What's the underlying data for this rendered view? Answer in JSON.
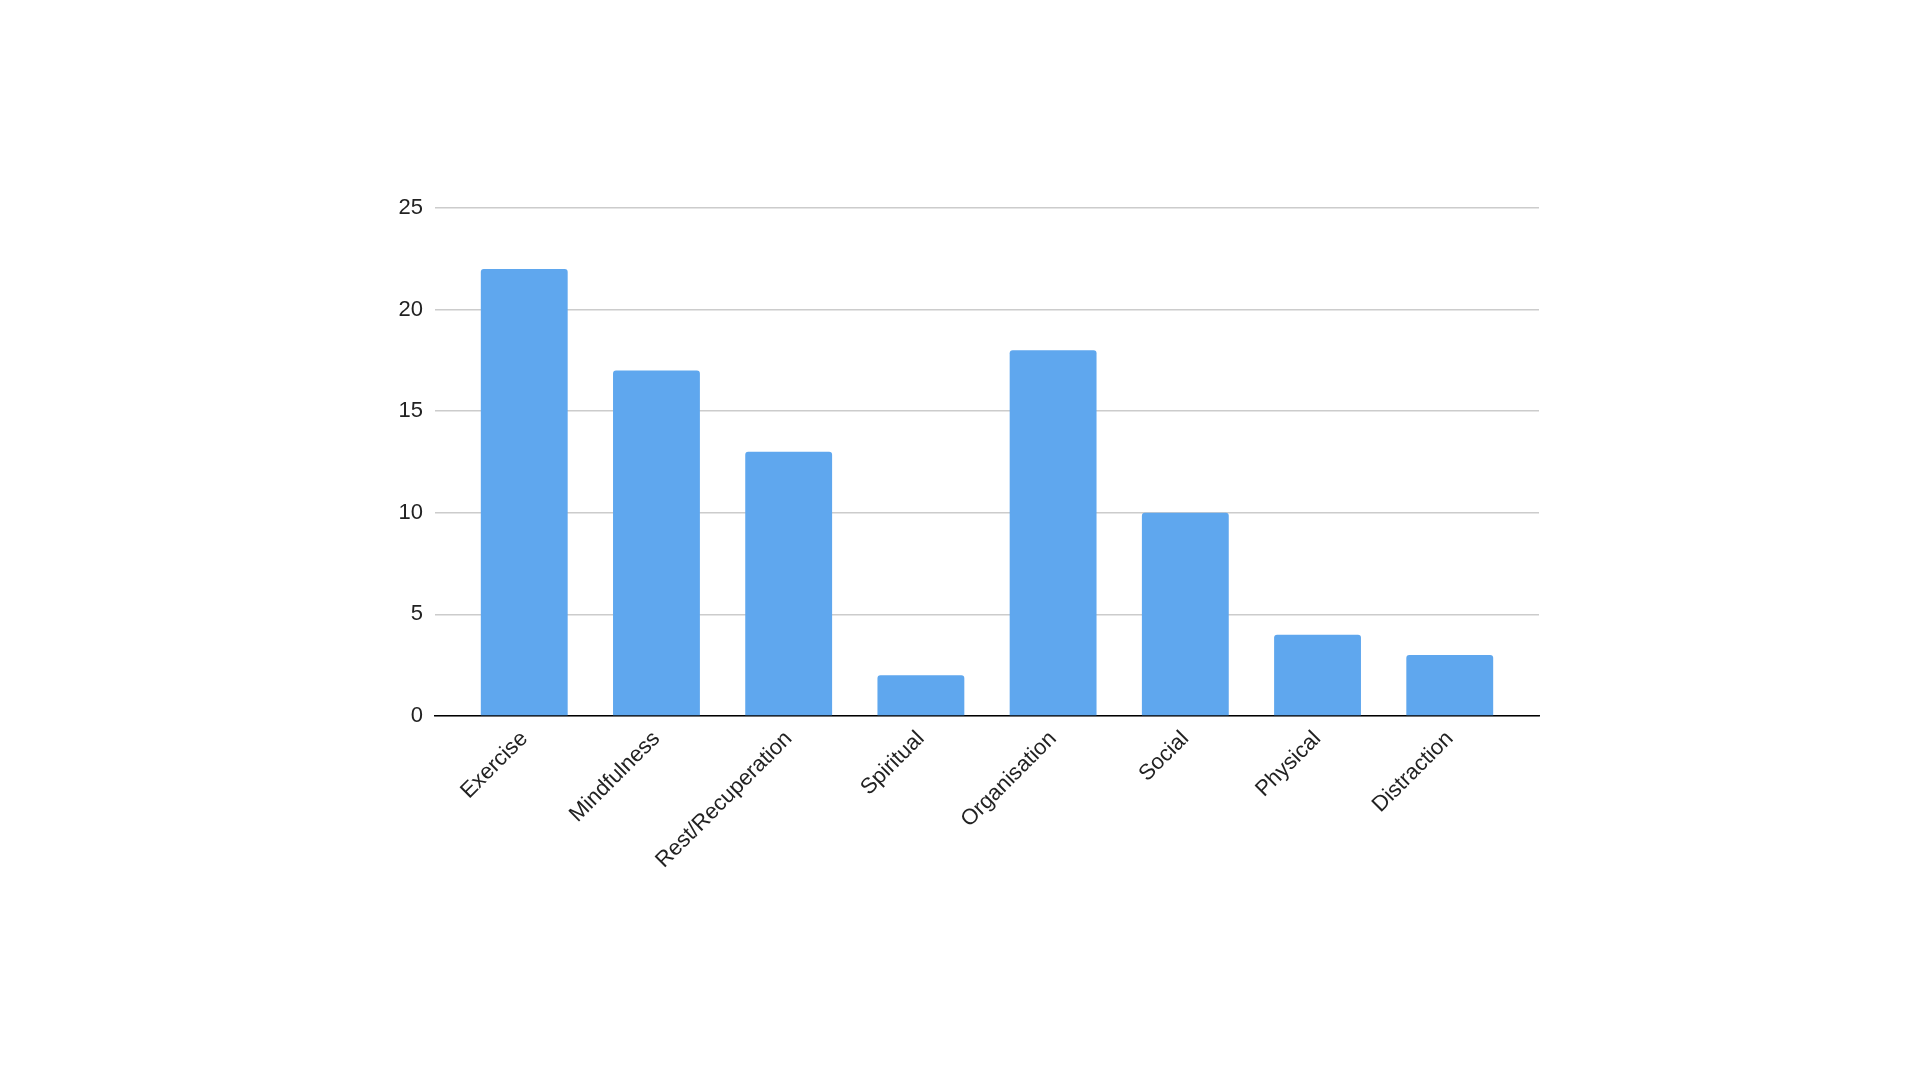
{
  "chart_data": {
    "type": "bar",
    "categories": [
      "Exercise",
      "Mindfulness",
      "Rest/Recuperation",
      "Spiritual",
      "Organisation",
      "Social",
      "Physical",
      "Distraction"
    ],
    "values": [
      22,
      17,
      13,
      2,
      18,
      10,
      4,
      3
    ],
    "color": "#5fa7ee",
    "ylim": [
      0,
      25
    ],
    "yticks": [
      0,
      5,
      10,
      15,
      20,
      25
    ],
    "grid": "y"
  }
}
